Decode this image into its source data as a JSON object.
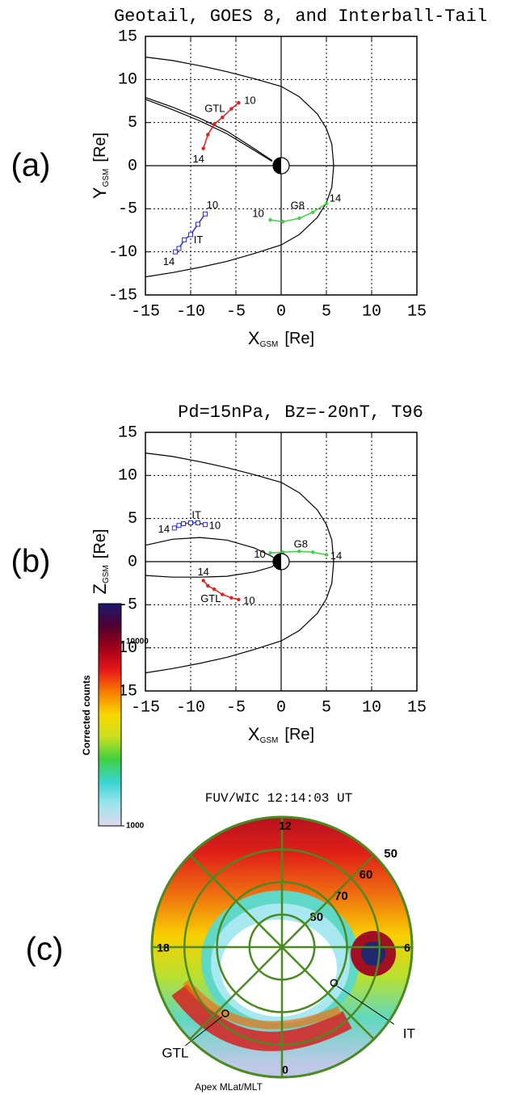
{
  "chart_data": [
    {
      "type": "line",
      "panel_label": "(a)",
      "title": "Geotail, GOES 8, and Interball-Tail",
      "xlabel": "X",
      "xlabel_sub": "GSM",
      "xlabel_unit": "[Re]",
      "ylabel": "Y",
      "ylabel_sub": "GSM",
      "ylabel_unit": "[Re]",
      "xlim": [
        -15,
        15
      ],
      "ylim": [
        -15,
        15
      ],
      "xticks": [
        -15,
        -10,
        -5,
        0,
        5,
        10,
        15
      ],
      "yticks": [
        -15,
        -10,
        -5,
        0,
        5,
        10,
        15
      ],
      "grid": true,
      "series": [
        {
          "color": "#000000",
          "x": [
            -15,
            -12,
            -9,
            -6,
            -3,
            0,
            2,
            4,
            5,
            5.6,
            5.8,
            5.6,
            5,
            4,
            2,
            0,
            -3,
            -6,
            -9,
            -12,
            -15
          ],
          "values": [
            12.6,
            12.2,
            11.6,
            10.9,
            10.1,
            9.2,
            8.0,
            6.0,
            4.3,
            2.5,
            0,
            -2.5,
            -4.3,
            -6.0,
            -8.0,
            -9.2,
            -10.2,
            -11.1,
            -11.8,
            -12.4,
            -12.9
          ]
        },
        {
          "color": "#000000",
          "x": [
            -15,
            -12,
            -9,
            -6,
            -3,
            -1
          ],
          "values": [
            7.9,
            6.8,
            5.5,
            4.0,
            2.0,
            0.6
          ]
        },
        {
          "color": "#000000",
          "x": [
            -15,
            -12,
            -9,
            -6,
            -3,
            -1
          ],
          "values": [
            7.7,
            6.5,
            5.2,
            3.7,
            1.8,
            0.5
          ]
        },
        {
          "name": "GTL",
          "color": "#e02020",
          "marker": "circle",
          "time_labels": [
            "10",
            "14"
          ],
          "x": [
            -4.7,
            -5.5,
            -6.5,
            -7.4,
            -8.1,
            -8.6
          ],
          "values": [
            7.3,
            6.6,
            5.6,
            4.8,
            3.6,
            2.0
          ]
        },
        {
          "name": "G8",
          "color": "#40d040",
          "marker": "circle",
          "time_labels": [
            "10",
            "14"
          ],
          "x": [
            -1.2,
            0.2,
            2.0,
            3.5,
            5.0
          ],
          "values": [
            -6.3,
            -6.5,
            -6.1,
            -5.4,
            -4.4
          ]
        },
        {
          "name": "IT",
          "color": "#2828e0",
          "marker": "square",
          "time_labels": [
            "10",
            "14"
          ],
          "x": [
            -8.4,
            -9.2,
            -10.0,
            -10.7,
            -11.3,
            -11.7
          ],
          "values": [
            -5.6,
            -6.8,
            -8.0,
            -8.6,
            -9.6,
            -10.0
          ]
        }
      ]
    },
    {
      "type": "line",
      "panel_label": "(b)",
      "title": "Pd=15nPa, Bz=-20nT, T96",
      "xlabel": "X",
      "xlabel_sub": "GSM",
      "xlabel_unit": "[Re]",
      "ylabel": "Z",
      "ylabel_sub": "GSM",
      "ylabel_unit": "[Re]",
      "xlim": [
        -15,
        15
      ],
      "ylim": [
        -15,
        15
      ],
      "xticks": [
        -15,
        -10,
        -5,
        0,
        5,
        10,
        15
      ],
      "yticks": [
        -15,
        -10,
        -5,
        0,
        5,
        10,
        15
      ],
      "grid": true,
      "series": [
        {
          "color": "#000000",
          "x": [
            -15,
            -12,
            -9,
            -6,
            -3,
            0,
            2,
            4,
            5,
            5.6,
            5.8,
            5.6,
            5,
            4,
            2,
            0,
            -3,
            -6,
            -9,
            -12,
            -15
          ],
          "values": [
            12.6,
            12.2,
            11.6,
            10.9,
            10.1,
            9.2,
            8.0,
            6.0,
            4.3,
            2.5,
            0,
            -2.5,
            -4.3,
            -6.0,
            -8.0,
            -9.2,
            -10.2,
            -11.1,
            -11.8,
            -12.4,
            -12.9
          ]
        },
        {
          "color": "#000000",
          "x": [
            -15,
            -12,
            -9,
            -6,
            -3,
            -1,
            -0.4,
            -1,
            -3,
            -6,
            -9,
            -12,
            -15
          ],
          "values": [
            1.9,
            2.6,
            2.8,
            2.5,
            1.6,
            0.6,
            0,
            -0.6,
            -1.2,
            -1.7,
            -1.8,
            -1.8,
            -1.6
          ]
        },
        {
          "name": "GTL",
          "color": "#e02020",
          "marker": "circle",
          "time_labels": [
            "10",
            "14"
          ],
          "x": [
            -4.7,
            -5.5,
            -6.5,
            -7.4,
            -8.1,
            -8.6
          ],
          "values": [
            -4.4,
            -4.2,
            -3.8,
            -3.2,
            -2.8,
            -2.2
          ]
        },
        {
          "name": "G8",
          "color": "#40d040",
          "marker": "circle",
          "time_labels": [
            "10",
            "14"
          ],
          "x": [
            -1.2,
            0.2,
            2.0,
            3.5,
            5.0
          ],
          "values": [
            1.0,
            1.1,
            1.2,
            1.1,
            0.8
          ]
        },
        {
          "name": "IT",
          "color": "#2828e0",
          "marker": "square",
          "time_labels": [
            "10",
            "14"
          ],
          "x": [
            -8.4,
            -9.2,
            -10.0,
            -10.8,
            -11.3,
            -11.8
          ],
          "values": [
            4.3,
            4.5,
            4.5,
            4.4,
            4.2,
            3.9
          ]
        }
      ]
    },
    {
      "type": "polar",
      "panel_label": "(c)",
      "title": "FUV/WIC 12:14:03 UT",
      "caption": "Apex MLat/MLT",
      "rlim": [
        90,
        50
      ],
      "rticks": [
        80,
        70,
        60,
        50
      ],
      "mlt_ticks": [
        0,
        6,
        12,
        18
      ],
      "mlt_minor": [
        3,
        9,
        15,
        21
      ],
      "grid_color": "#4a8a20",
      "colorbar": {
        "label": "Corrected counts",
        "lim": [
          1000,
          16000
        ],
        "log": true,
        "ticks": [
          1000,
          10000
        ],
        "colors": [
          "#e0d8ec",
          "#9ce4ec",
          "#38d4d0",
          "#40d040",
          "#c8e020",
          "#f8d800",
          "#f88000",
          "#e81818",
          "#a00018",
          "#500030",
          "#1a1a70"
        ]
      },
      "points": [
        {
          "name": "GTL",
          "mlat": 63.2,
          "mlt": 21.3
        },
        {
          "name": "IT",
          "mlat": 70.6,
          "mlt": 3.7
        }
      ]
    }
  ]
}
